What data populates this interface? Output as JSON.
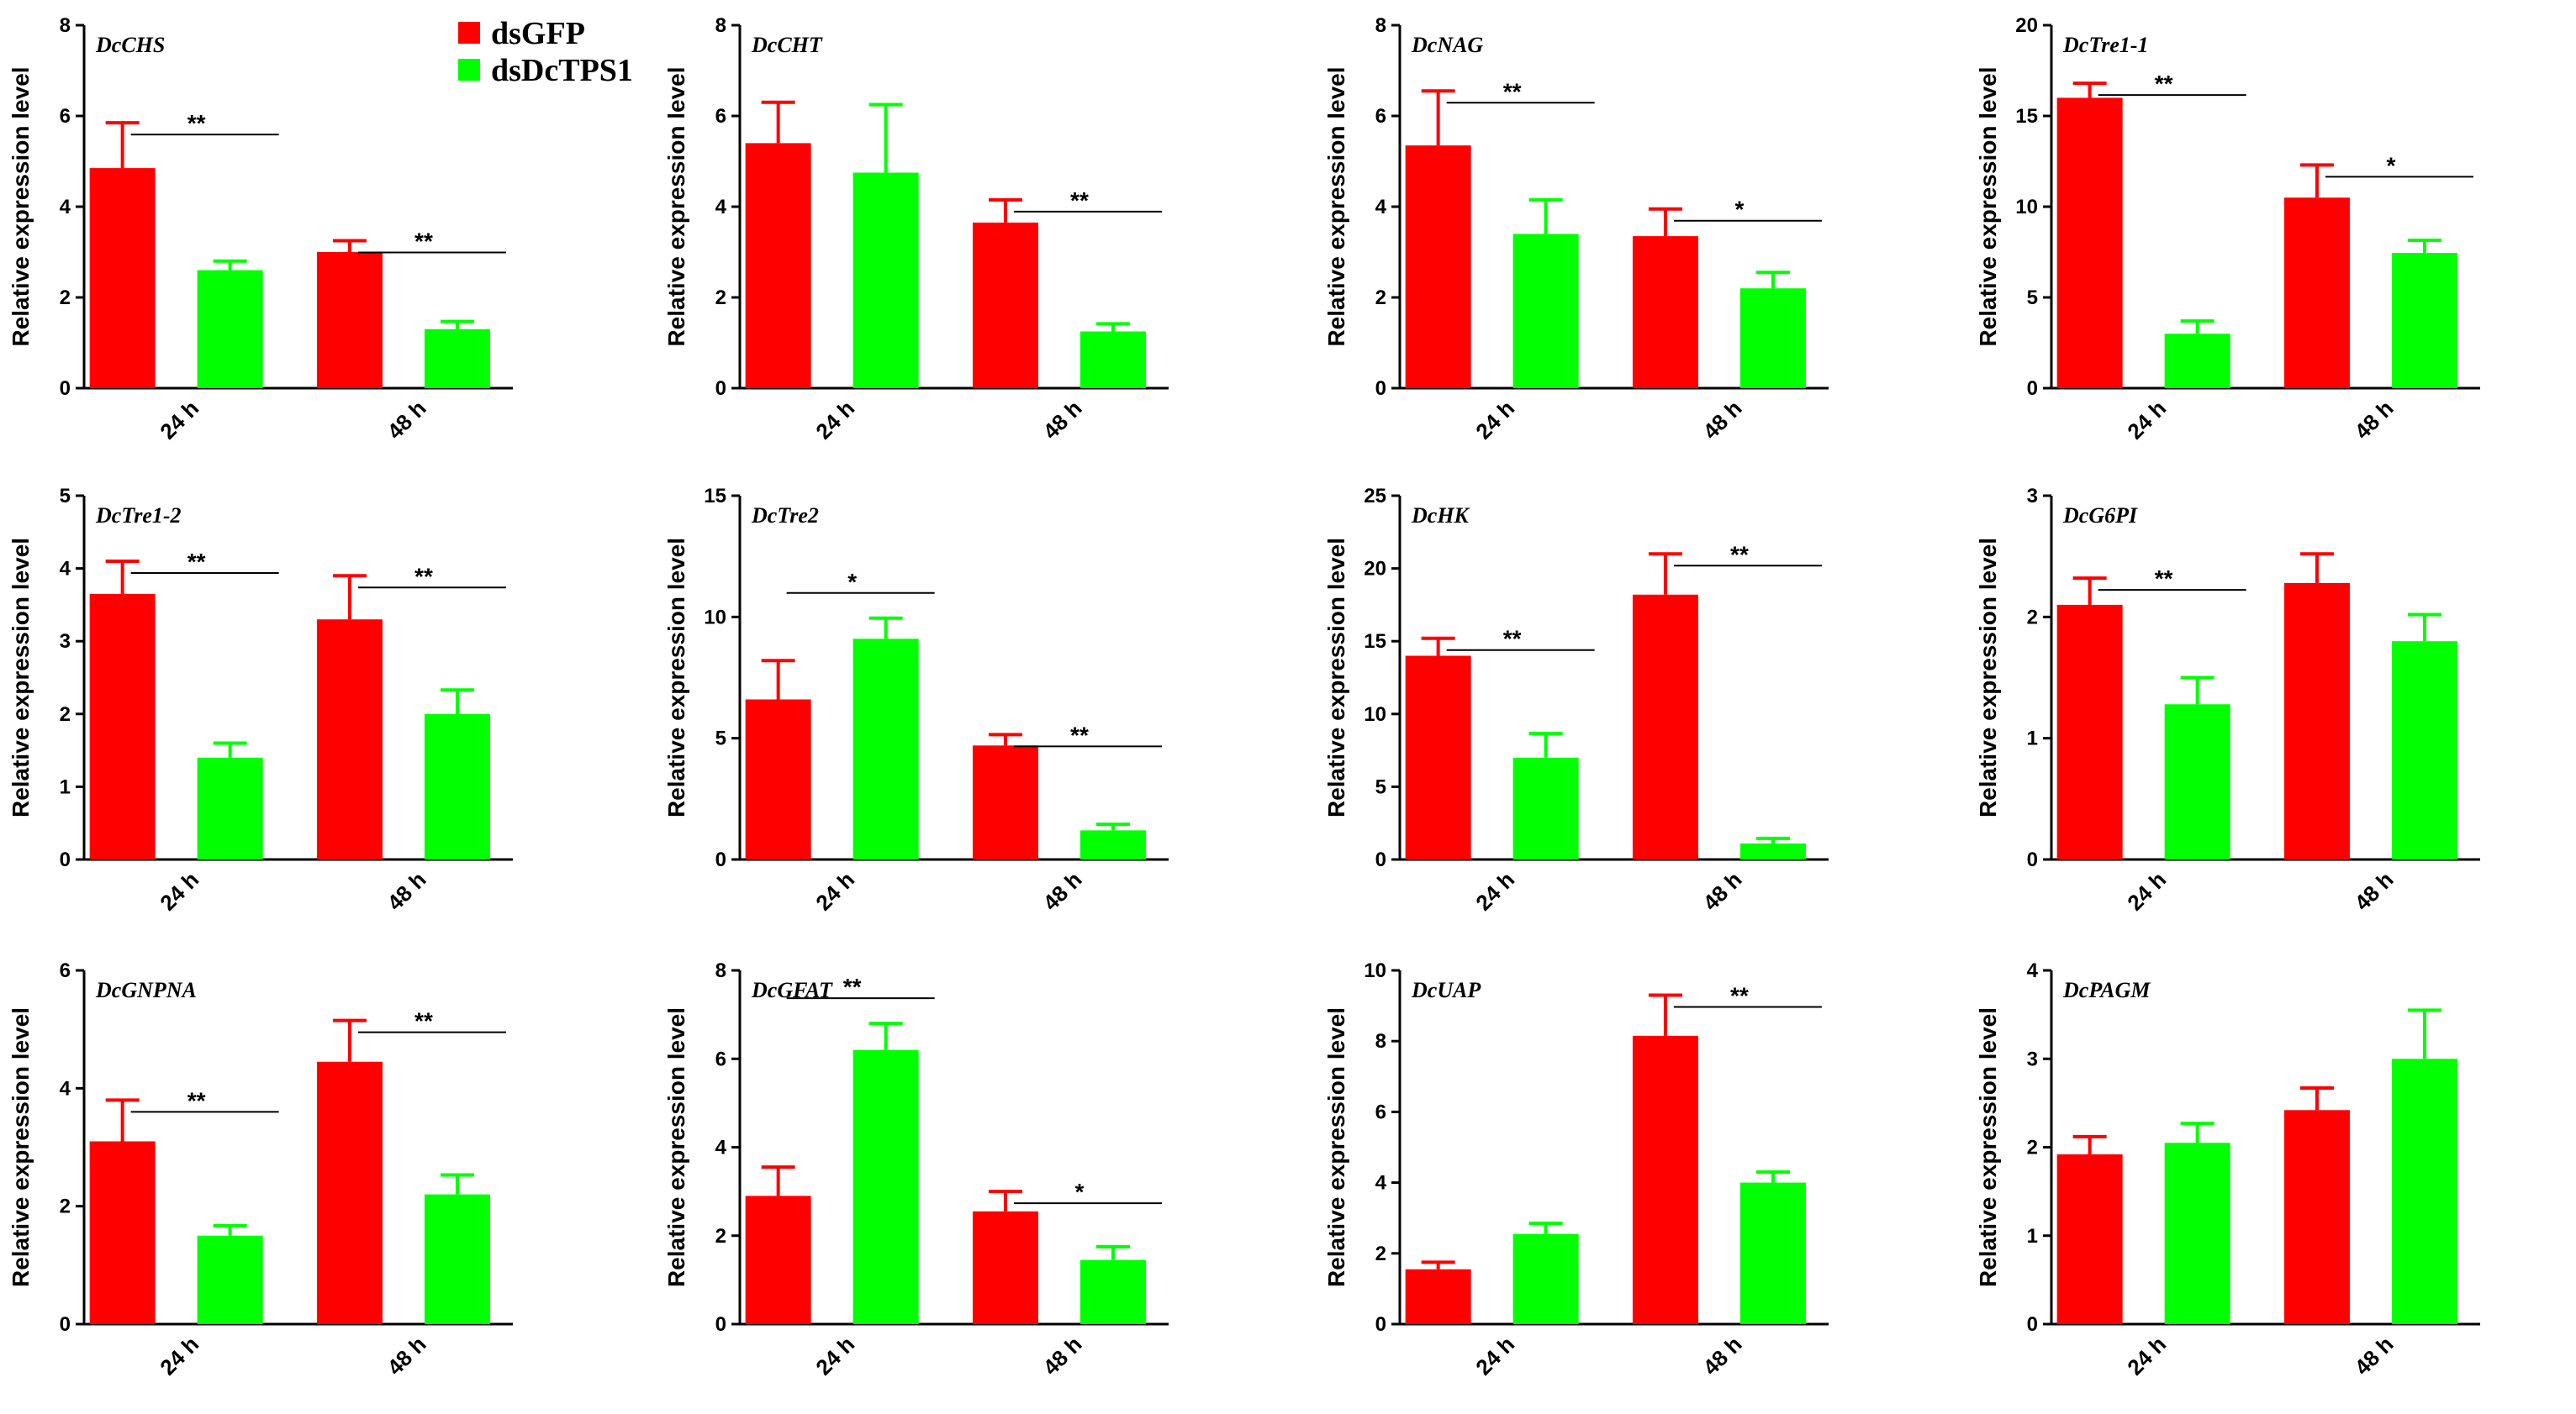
{
  "figure": {
    "legend": [
      {
        "name": "dsGFP",
        "color": "#ff0000"
      },
      {
        "name": "dsDcTPS1",
        "color": "#00ff00"
      }
    ]
  },
  "chart_data": [
    {
      "type": "bar",
      "title": "DcCHS",
      "ylabel": "Relative expression level",
      "categories": [
        "24 h",
        "48 h"
      ],
      "ylim": [
        0,
        8
      ],
      "yticks": [
        0,
        2,
        4,
        6,
        8
      ],
      "series": [
        {
          "name": "dsGFP",
          "values": [
            4.85,
            3.0
          ],
          "errors": [
            1.0,
            0.25
          ]
        },
        {
          "name": "dsDcTPS1",
          "values": [
            2.6,
            1.3
          ],
          "errors": [
            0.2,
            0.17
          ]
        }
      ],
      "significance": [
        "**",
        "**"
      ]
    },
    {
      "type": "bar",
      "title": "DcCHT",
      "ylabel": "Relative expression level",
      "categories": [
        "24 h",
        "48 h"
      ],
      "ylim": [
        0,
        8
      ],
      "yticks": [
        0,
        2,
        4,
        6,
        8
      ],
      "series": [
        {
          "name": "dsGFP",
          "values": [
            5.4,
            3.65
          ],
          "errors": [
            0.9,
            0.5
          ]
        },
        {
          "name": "dsDcTPS1",
          "values": [
            4.75,
            1.25
          ],
          "errors": [
            1.5,
            0.17
          ]
        }
      ],
      "significance": [
        "",
        "**"
      ]
    },
    {
      "type": "bar",
      "title": "DcNAG",
      "ylabel": "Relative expression level",
      "categories": [
        "24 h",
        "48 h"
      ],
      "ylim": [
        0,
        8
      ],
      "yticks": [
        0,
        2,
        4,
        6,
        8
      ],
      "series": [
        {
          "name": "dsGFP",
          "values": [
            5.35,
            3.35
          ],
          "errors": [
            1.2,
            0.6
          ]
        },
        {
          "name": "dsDcTPS1",
          "values": [
            3.4,
            2.2
          ],
          "errors": [
            0.75,
            0.35
          ]
        }
      ],
      "significance": [
        "**",
        "*"
      ]
    },
    {
      "type": "bar",
      "title": "DcTre1-1",
      "ylabel": "Relative expression level",
      "categories": [
        "24 h",
        "48 h"
      ],
      "ylim": [
        0,
        20
      ],
      "yticks": [
        0,
        5,
        10,
        15,
        20
      ],
      "series": [
        {
          "name": "dsGFP",
          "values": [
            16.0,
            10.5
          ],
          "errors": [
            0.8,
            1.8
          ]
        },
        {
          "name": "dsDcTPS1",
          "values": [
            3.0,
            7.45
          ],
          "errors": [
            0.7,
            0.7
          ]
        }
      ],
      "significance": [
        "**",
        "*"
      ]
    },
    {
      "type": "bar",
      "title": "DcTre1-2",
      "ylabel": "Relative expression level",
      "categories": [
        "24 h",
        "48 h"
      ],
      "ylim": [
        0,
        5
      ],
      "yticks": [
        0,
        1,
        2,
        3,
        4,
        5
      ],
      "series": [
        {
          "name": "dsGFP",
          "values": [
            3.65,
            3.3
          ],
          "errors": [
            0.45,
            0.6
          ]
        },
        {
          "name": "dsDcTPS1",
          "values": [
            1.4,
            2.0
          ],
          "errors": [
            0.2,
            0.33
          ]
        }
      ],
      "significance": [
        "**",
        "**"
      ]
    },
    {
      "type": "bar",
      "title": "DcTre2",
      "ylabel": "Relative expression level",
      "categories": [
        "24 h",
        "48 h"
      ],
      "ylim": [
        0,
        15
      ],
      "yticks": [
        0,
        5,
        10,
        15
      ],
      "series": [
        {
          "name": "dsGFP",
          "values": [
            6.6,
            4.7
          ],
          "errors": [
            1.6,
            0.45
          ]
        },
        {
          "name": "dsDcTPS1",
          "values": [
            9.1,
            1.2
          ],
          "errors": [
            0.85,
            0.25
          ]
        }
      ],
      "significance": [
        "*",
        "**"
      ]
    },
    {
      "type": "bar",
      "title": "DcHK",
      "ylabel": "Relative expression level",
      "categories": [
        "24 h",
        "48 h"
      ],
      "ylim": [
        0,
        25
      ],
      "yticks": [
        0,
        5,
        10,
        15,
        20,
        25
      ],
      "series": [
        {
          "name": "dsGFP",
          "values": [
            14.0,
            18.2
          ],
          "errors": [
            1.2,
            2.8
          ]
        },
        {
          "name": "dsDcTPS1",
          "values": [
            7.0,
            1.1
          ],
          "errors": [
            1.65,
            0.35
          ]
        }
      ],
      "significance": [
        "**",
        "**"
      ]
    },
    {
      "type": "bar",
      "title": "DcG6PI",
      "ylabel": "Relative expression level",
      "categories": [
        "24 h",
        "48 h"
      ],
      "ylim": [
        0,
        3
      ],
      "yticks": [
        0,
        1,
        2,
        3
      ],
      "series": [
        {
          "name": "dsGFP",
          "values": [
            2.1,
            2.28
          ],
          "errors": [
            0.22,
            0.24
          ]
        },
        {
          "name": "dsDcTPS1",
          "values": [
            1.28,
            1.8
          ],
          "errors": [
            0.22,
            0.22
          ]
        }
      ],
      "significance": [
        "**",
        ""
      ]
    },
    {
      "type": "bar",
      "title": "DcGNPNA",
      "ylabel": "Relative expression level",
      "categories": [
        "24 h",
        "48 h"
      ],
      "ylim": [
        0,
        6
      ],
      "yticks": [
        0,
        2,
        4,
        6
      ],
      "series": [
        {
          "name": "dsGFP",
          "values": [
            3.1,
            4.45
          ],
          "errors": [
            0.7,
            0.7
          ]
        },
        {
          "name": "dsDcTPS1",
          "values": [
            1.5,
            2.2
          ],
          "errors": [
            0.17,
            0.33
          ]
        }
      ],
      "significance": [
        "**",
        "**"
      ]
    },
    {
      "type": "bar",
      "title": "DcGFAT",
      "ylabel": "Relative expression level",
      "categories": [
        "24 h",
        "48 h"
      ],
      "ylim": [
        0,
        8
      ],
      "yticks": [
        0,
        2,
        4,
        6,
        8
      ],
      "series": [
        {
          "name": "dsGFP",
          "values": [
            2.9,
            2.55
          ],
          "errors": [
            0.65,
            0.45
          ]
        },
        {
          "name": "dsDcTPS1",
          "values": [
            6.2,
            1.45
          ],
          "errors": [
            0.6,
            0.3
          ]
        }
      ],
      "significance": [
        "**",
        "*"
      ]
    },
    {
      "type": "bar",
      "title": "DcUAP",
      "ylabel": "Relative expression level",
      "categories": [
        "24 h",
        "48 h"
      ],
      "ylim": [
        0,
        10
      ],
      "yticks": [
        0,
        2,
        4,
        6,
        8,
        10
      ],
      "series": [
        {
          "name": "dsGFP",
          "values": [
            1.55,
            8.15
          ],
          "errors": [
            0.2,
            1.15
          ]
        },
        {
          "name": "dsDcTPS1",
          "values": [
            2.55,
            4.0
          ],
          "errors": [
            0.3,
            0.3
          ]
        }
      ],
      "significance": [
        "",
        "**"
      ]
    },
    {
      "type": "bar",
      "title": "DcPAGM",
      "ylabel": "Relative expression level",
      "categories": [
        "24 h",
        "48 h"
      ],
      "ylim": [
        0,
        4
      ],
      "yticks": [
        0,
        1,
        2,
        3,
        4
      ],
      "series": [
        {
          "name": "dsGFP",
          "values": [
            1.92,
            2.42
          ],
          "errors": [
            0.2,
            0.25
          ]
        },
        {
          "name": "dsDcTPS1",
          "values": [
            2.05,
            3.0
          ],
          "errors": [
            0.22,
            0.55
          ]
        }
      ],
      "significance": [
        "",
        ""
      ]
    }
  ]
}
